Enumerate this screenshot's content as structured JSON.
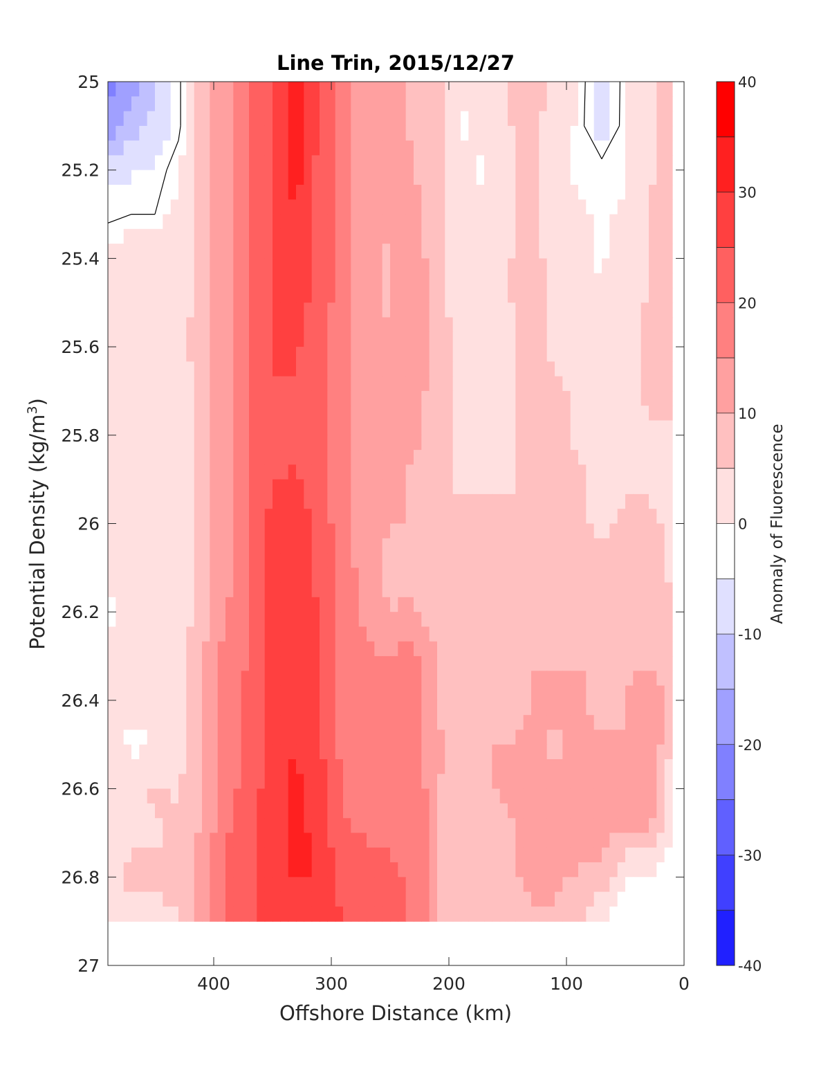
{
  "chart_data": {
    "type": "heatmap",
    "subtype": "filled-contour",
    "title": "Line Trin, 2015/12/27",
    "xlabel": "Offshore Distance (km)",
    "ylabel_prefix": "Potential Density (kg/m",
    "ylabel_sup": "3",
    "ylabel_suffix": ")",
    "xlim": [
      490,
      0
    ],
    "x_reversed": true,
    "ylim": [
      25.0,
      27.0
    ],
    "y_reversed": true,
    "x_ticks": [
      "400",
      "300",
      "200",
      "100",
      "0"
    ],
    "x_tick_values": [
      400,
      300,
      200,
      100,
      0
    ],
    "y_ticks": [
      "25",
      "25.2",
      "25.4",
      "25.6",
      "25.8",
      "26",
      "26.2",
      "26.4",
      "26.6",
      "26.8",
      "27"
    ],
    "y_tick_values": [
      25.0,
      25.2,
      25.4,
      25.6,
      25.8,
      26.0,
      26.2,
      26.4,
      26.6,
      26.8,
      27.0
    ],
    "colorbar": {
      "label": "Anomaly of Fluorescence",
      "range": [
        -40,
        40
      ],
      "level_step": 5,
      "ticks": [
        "40",
        "30",
        "20",
        "10",
        "0",
        "-10",
        "-20",
        "-30",
        "-40"
      ],
      "tick_values": [
        40,
        30,
        20,
        10,
        0,
        -10,
        -20,
        -30,
        -40
      ],
      "colors": [
        "#0000ff",
        "#2020ff",
        "#4040ff",
        "#6060ff",
        "#8080ff",
        "#a0a0ff",
        "#c0c0ff",
        "#e0e0ff",
        "#ffffff",
        "#ffe0e0",
        "#ffc0c0",
        "#ffa0a0",
        "#ff8080",
        "#ff6060",
        "#ff4040",
        "#ff2020",
        "#ff0000"
      ]
    },
    "zero_contour": true,
    "data_limit": 26.9,
    "grid": {
      "x": [
        490,
        470,
        450,
        430,
        410,
        390,
        370,
        350,
        330,
        310,
        290,
        270,
        250,
        230,
        210,
        190,
        170,
        150,
        130,
        110,
        90,
        70,
        50,
        30,
        10
      ],
      "y": [
        25.0,
        25.1,
        25.2,
        25.3,
        25.4,
        25.5,
        25.6,
        25.7,
        25.8,
        25.9,
        26.0,
        26.1,
        26.2,
        26.3,
        26.4,
        26.5,
        26.6,
        26.7,
        26.8,
        26.9
      ],
      "z": [
        [
          -20,
          -14,
          -8,
          -1,
          10,
          16,
          22,
          28,
          36,
          26,
          19,
          14,
          13,
          12,
          9,
          3,
          3,
          8,
          10,
          6,
          3,
          -7,
          2,
          5,
          10
        ],
        [
          -15,
          -11,
          -6,
          -1,
          10,
          16,
          22,
          28,
          36,
          26,
          19,
          14,
          13,
          12,
          9,
          2,
          3,
          7,
          9,
          5,
          2,
          -6,
          2,
          5,
          10
        ],
        [
          -4,
          -3,
          -2,
          2,
          10,
          16,
          22,
          28,
          34,
          26,
          19,
          14,
          13,
          13,
          9,
          3,
          2,
          7,
          9,
          3,
          2,
          2,
          2,
          7,
          9
        ],
        [
          -1,
          0,
          0,
          4,
          10,
          16,
          22,
          28,
          33,
          26,
          19,
          14,
          13,
          14,
          9,
          4,
          4,
          7,
          9,
          4,
          3,
          2,
          3,
          8,
          9
        ],
        [
          4,
          6,
          5,
          5,
          10,
          16,
          22,
          28,
          31,
          26,
          19,
          14,
          12,
          16,
          9,
          4,
          3,
          7,
          10,
          5,
          3,
          2,
          4,
          8,
          9
        ],
        [
          7,
          7,
          6,
          4,
          10,
          16,
          22,
          28,
          29,
          26,
          19,
          14,
          12,
          17,
          9,
          5,
          3,
          7,
          10,
          6,
          4,
          3,
          5,
          8,
          9
        ],
        [
          7,
          6,
          6,
          6,
          10,
          16,
          22,
          28,
          28,
          25,
          19,
          14,
          13,
          17,
          9,
          7,
          4,
          7,
          9,
          7,
          5,
          4,
          6,
          8,
          8
        ],
        [
          7,
          6,
          6,
          3,
          10,
          16,
          22,
          27,
          27,
          25,
          19,
          14,
          13,
          16,
          9,
          7,
          6,
          7,
          9,
          8,
          7,
          4,
          6,
          8,
          8
        ],
        [
          7,
          6,
          6,
          3,
          10,
          16,
          22,
          27,
          27,
          25,
          19,
          14,
          13,
          14,
          9,
          7,
          7,
          7,
          9,
          8,
          7,
          6,
          6,
          7,
          7
        ],
        [
          7,
          6,
          6,
          3,
          10,
          16,
          22,
          27,
          28,
          25,
          19,
          14,
          13,
          12,
          9,
          7,
          7,
          7,
          8,
          8,
          8,
          6,
          7,
          7,
          7
        ],
        [
          7,
          7,
          6,
          3,
          10,
          16,
          22,
          29,
          30,
          26,
          19,
          14,
          13,
          12,
          9,
          8,
          8,
          8,
          8,
          8,
          8,
          7,
          8,
          8,
          7
        ],
        [
          3,
          5,
          6,
          4,
          10,
          16,
          22,
          30,
          31,
          26,
          19,
          16,
          9,
          12,
          9,
          8,
          8,
          8,
          8,
          8,
          8,
          8,
          9,
          8,
          7
        ],
        [
          2,
          3,
          5,
          4,
          10,
          17,
          22,
          30,
          32,
          27,
          19,
          16,
          13,
          13,
          10,
          8,
          8,
          8,
          8,
          8,
          8,
          9,
          12,
          12,
          8
        ],
        [
          3,
          4,
          6,
          5,
          12,
          19,
          23,
          30,
          32,
          27,
          21,
          18,
          18,
          19,
          12,
          12,
          12,
          12,
          12,
          12,
          12,
          11,
          12,
          11,
          9
        ],
        [
          4,
          5,
          7,
          6,
          12,
          19,
          24,
          30,
          32,
          28,
          21,
          20,
          19,
          20,
          12,
          12,
          12,
          8,
          13,
          13,
          14,
          10,
          12,
          18,
          9
        ],
        [
          6,
          1,
          2,
          4,
          12,
          19,
          24,
          30,
          32,
          28,
          21,
          21,
          21,
          21,
          13,
          12,
          12,
          13,
          13,
          12,
          13,
          13,
          13,
          16,
          9
        ],
        [
          1,
          7,
          8,
          7,
          13,
          20,
          25,
          30,
          34,
          30,
          22,
          22,
          22,
          22,
          13,
          9,
          12,
          13,
          13,
          13,
          13,
          14,
          16,
          18,
          2
        ],
        [
          7,
          7,
          7,
          9,
          13,
          22,
          25,
          30,
          34,
          31,
          23,
          22,
          22,
          22,
          13,
          9,
          11,
          12,
          13,
          16,
          14,
          14,
          12,
          12,
          2
        ],
        [
          7,
          8,
          8,
          9,
          15,
          23,
          25,
          30,
          33,
          32,
          25,
          24,
          23,
          22,
          13,
          9,
          12,
          12,
          13,
          13,
          12,
          12,
          1,
          1,
          1
        ],
        [
          7,
          7,
          6,
          7,
          15,
          23,
          25,
          30,
          30,
          29,
          28,
          24,
          23,
          22,
          13,
          9,
          11,
          11,
          12,
          12,
          9,
          1,
          1,
          1,
          1
        ]
      ]
    }
  }
}
